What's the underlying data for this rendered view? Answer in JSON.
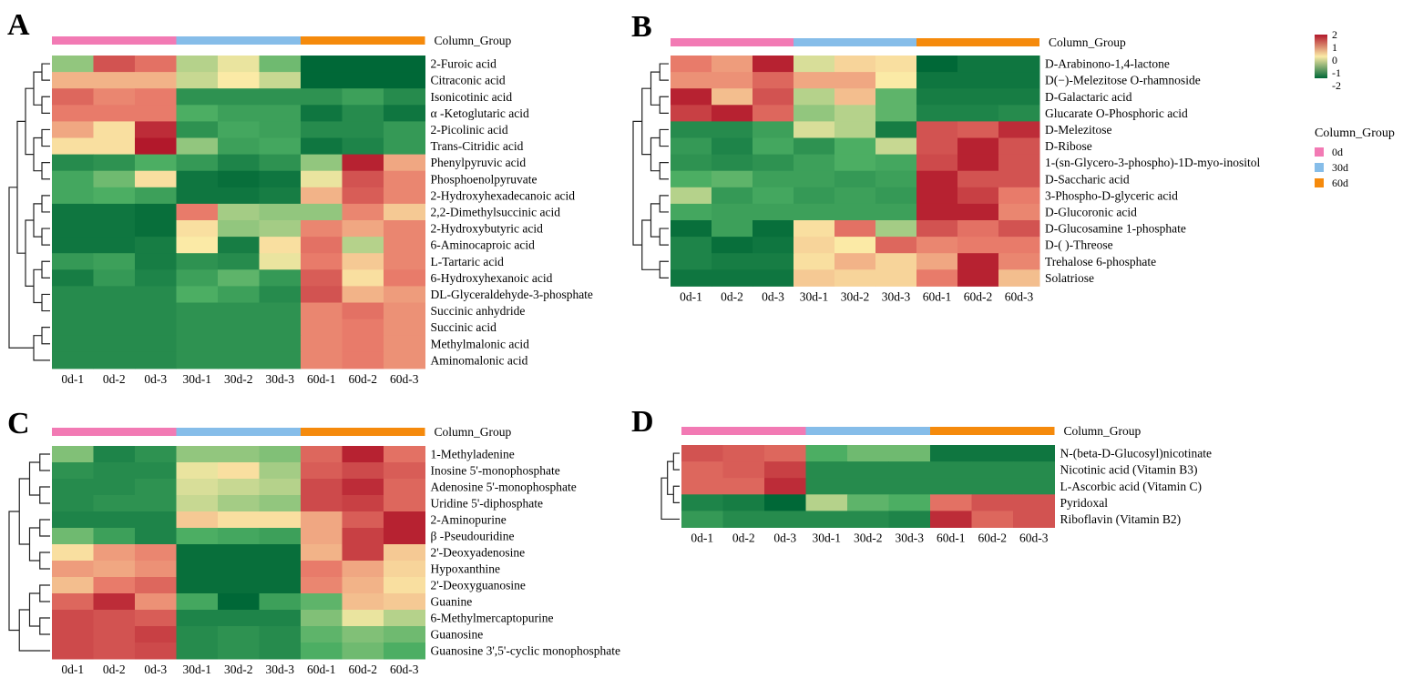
{
  "figure": {
    "legend": {
      "title": "Column_Group",
      "items": [
        {
          "label": "0d",
          "color": "#f27ab4"
        },
        {
          "label": "30d",
          "color": "#86bde9"
        },
        {
          "label": "60d",
          "color": "#f58a0c"
        }
      ]
    },
    "colorbar": {
      "ticks": [
        "2",
        "1",
        "0",
        "-1",
        "-2"
      ],
      "min": -2,
      "max": 2,
      "colors": [
        "#b2182b",
        "#fbeaa6",
        "#006837"
      ]
    }
  },
  "chart_data": [
    {
      "type": "heatmap",
      "panel": "A",
      "title": "Column_Group",
      "xlabel": "",
      "ylabel": "",
      "columns": [
        "0d-1",
        "0d-2",
        "0d-3",
        "30d-1",
        "30d-2",
        "30d-3",
        "60d-1",
        "60d-2",
        "60d-3"
      ],
      "groups": [
        {
          "label": "0d",
          "span": 3
        },
        {
          "label": "30d",
          "span": 3
        },
        {
          "label": "60d",
          "span": 3
        }
      ],
      "rows": [
        "2-Furoic acid",
        "Citraconic acid",
        "Isonicotinic acid",
        "α -Ketoglutaric acid",
        "2-Picolinic acid",
        "Trans-Citridic acid",
        "Phenylpyruvic acid",
        "Phosphoenolpyruvate",
        "2-Hydroxyhexadecanoic acid",
        "2,2-Dimethylsuccinic acid",
        "2-Hydroxybutyric acid",
        "6-Aminocaproic acid",
        "L-Tartaric acid",
        "6-Hydroxyhexanoic acid",
        "DL-Glyceraldehyde-3-phosphate",
        "Succinic anhydride",
        "Succinic acid",
        "Methylmalonic acid",
        "Aminomalonic acid"
      ],
      "values": [
        [
          -0.6,
          1.4,
          1.1,
          -0.4,
          -0.1,
          -0.8,
          -2.0,
          -2.0,
          -2.0
        ],
        [
          0.5,
          0.5,
          0.5,
          -0.3,
          0.0,
          -0.3,
          -2.0,
          -2.0,
          -2.0
        ],
        [
          1.2,
          0.9,
          1.0,
          -1.4,
          -1.4,
          -1.4,
          -1.4,
          -1.2,
          -1.5
        ],
        [
          1.0,
          1.0,
          1.0,
          -1.0,
          -1.2,
          -1.2,
          -1.8,
          -1.5,
          -1.8
        ],
        [
          0.6,
          0.1,
          1.8,
          -1.4,
          -1.1,
          -1.2,
          -1.5,
          -1.5,
          -1.3
        ],
        [
          0.1,
          0.1,
          2.0,
          -0.6,
          -1.2,
          -1.1,
          -1.8,
          -1.6,
          -1.3
        ],
        [
          -1.5,
          -1.4,
          -1.0,
          -1.3,
          -1.6,
          -1.4,
          -0.6,
          1.9,
          0.6
        ],
        [
          -1.1,
          -0.8,
          0.1,
          -1.8,
          -1.9,
          -1.8,
          -0.1,
          1.4,
          0.9
        ],
        [
          -1.1,
          -1.0,
          -1.2,
          -1.8,
          -1.8,
          -1.7,
          0.5,
          1.3,
          0.9
        ],
        [
          -1.8,
          -1.8,
          -1.9,
          1.0,
          -0.5,
          -0.6,
          -0.6,
          0.9,
          0.3
        ],
        [
          -1.8,
          -1.8,
          -1.9,
          0.1,
          -0.6,
          -0.5,
          0.9,
          0.6,
          0.9
        ],
        [
          -1.8,
          -1.8,
          -1.7,
          0.0,
          -1.7,
          0.1,
          1.1,
          -0.4,
          0.9
        ],
        [
          -1.3,
          -1.2,
          -1.7,
          -1.4,
          -1.5,
          -0.1,
          1.0,
          0.3,
          0.9
        ],
        [
          -1.7,
          -1.3,
          -1.6,
          -1.2,
          -0.9,
          -1.3,
          1.3,
          0.1,
          1.0
        ],
        [
          -1.5,
          -1.5,
          -1.5,
          -1.0,
          -1.2,
          -1.5,
          1.4,
          0.5,
          0.7
        ],
        [
          -1.5,
          -1.5,
          -1.5,
          -1.4,
          -1.4,
          -1.4,
          0.9,
          1.1,
          0.8
        ],
        [
          -1.5,
          -1.5,
          -1.5,
          -1.4,
          -1.4,
          -1.4,
          0.9,
          1.0,
          0.8
        ],
        [
          -1.5,
          -1.5,
          -1.5,
          -1.4,
          -1.4,
          -1.4,
          0.9,
          1.0,
          0.8
        ],
        [
          -1.5,
          -1.5,
          -1.5,
          -1.4,
          -1.4,
          -1.4,
          0.9,
          1.0,
          0.8
        ]
      ]
    },
    {
      "type": "heatmap",
      "panel": "B",
      "title": "Column_Group",
      "xlabel": "",
      "ylabel": "",
      "columns": [
        "0d-1",
        "0d-2",
        "0d-3",
        "30d-1",
        "30d-2",
        "30d-3",
        "60d-1",
        "60d-2",
        "60d-3"
      ],
      "groups": [
        {
          "label": "0d",
          "span": 3
        },
        {
          "label": "30d",
          "span": 3
        },
        {
          "label": "60d",
          "span": 3
        }
      ],
      "rows": [
        "D-Arabinono-1,4-lactone",
        "D(−)-Melezitose O-rhamnoside",
        "D-Galactaric acid",
        "Glucarate O-Phosphoric acid",
        "D-Melezitose",
        "D-Ribose",
        "1-(sn-Glycero-3-phospho)-1D-myo-inositol",
        "D-Saccharic acid",
        "3-Phospho-D-glyceric acid",
        "D-Glucoronic acid",
        "D-Glucosamine 1-phosphate",
        "D-( )-Threose",
        "Trehalose 6-phosphate",
        "Solatriose"
      ],
      "values": [
        [
          1.0,
          0.7,
          1.9,
          -0.2,
          0.2,
          0.1,
          -2.0,
          -1.8,
          -1.8
        ],
        [
          0.8,
          0.8,
          1.2,
          0.6,
          0.6,
          0.0,
          -1.8,
          -1.8,
          -1.8
        ],
        [
          1.9,
          0.4,
          1.4,
          -0.4,
          0.4,
          -0.9,
          -1.7,
          -1.7,
          -1.7
        ],
        [
          1.6,
          1.9,
          1.2,
          -0.6,
          -0.4,
          -0.9,
          -1.6,
          -1.6,
          -1.5
        ],
        [
          -1.5,
          -1.5,
          -1.2,
          -0.2,
          -0.4,
          -1.7,
          1.4,
          1.3,
          1.8
        ],
        [
          -1.3,
          -1.6,
          -1.1,
          -1.4,
          -1.0,
          -0.3,
          1.4,
          1.9,
          1.4
        ],
        [
          -1.4,
          -1.5,
          -1.4,
          -1.2,
          -1.0,
          -1.1,
          1.5,
          1.9,
          1.4
        ],
        [
          -1.0,
          -0.9,
          -1.2,
          -1.2,
          -1.3,
          -1.2,
          1.9,
          1.4,
          1.4
        ],
        [
          -0.4,
          -1.3,
          -1.1,
          -1.3,
          -1.2,
          -1.3,
          1.9,
          1.6,
          1.0
        ],
        [
          -1.1,
          -1.2,
          -1.2,
          -1.2,
          -1.2,
          -1.2,
          1.9,
          1.9,
          0.9
        ],
        [
          -1.9,
          -1.2,
          -1.9,
          0.1,
          1.1,
          -0.5,
          1.4,
          1.1,
          1.4
        ],
        [
          -1.6,
          -1.9,
          -1.8,
          0.2,
          0.0,
          1.2,
          0.9,
          1.0,
          1.0
        ],
        [
          -1.6,
          -1.7,
          -1.7,
          0.1,
          0.5,
          0.2,
          0.6,
          1.9,
          0.9
        ],
        [
          -1.8,
          -1.8,
          -1.8,
          0.3,
          0.2,
          0.2,
          1.0,
          1.9,
          0.4
        ]
      ]
    },
    {
      "type": "heatmap",
      "panel": "C",
      "title": "Column_Group",
      "xlabel": "",
      "ylabel": "",
      "columns": [
        "0d-1",
        "0d-2",
        "0d-3",
        "30d-1",
        "30d-2",
        "30d-3",
        "60d-1",
        "60d-2",
        "60d-3"
      ],
      "groups": [
        {
          "label": "0d",
          "span": 3
        },
        {
          "label": "30d",
          "span": 3
        },
        {
          "label": "60d",
          "span": 3
        }
      ],
      "rows": [
        "1-Methyladenine",
        "Inosine 5'-monophosphate",
        "Adenosine 5'-monophosphate",
        "Uridine 5'-diphosphate",
        "2-Aminopurine",
        "β -Pseudouridine",
        "2'-Deoxyadenosine",
        "Hypoxanthine",
        "2'-Deoxyguanosine",
        "Guanine",
        "6-Methylmercaptopurine",
        "Guanosine",
        "Guanosine 3',5'-cyclic monophosphate"
      ],
      "values": [
        [
          -0.7,
          -1.6,
          -1.4,
          -0.6,
          -0.6,
          -0.7,
          1.2,
          1.9,
          1.1
        ],
        [
          -1.4,
          -1.5,
          -1.5,
          -0.1,
          0.1,
          -0.5,
          1.3,
          1.5,
          1.3
        ],
        [
          -1.5,
          -1.5,
          -1.4,
          -0.2,
          -0.3,
          -0.4,
          1.5,
          1.8,
          1.2
        ],
        [
          -1.5,
          -1.4,
          -1.4,
          -0.3,
          -0.5,
          -0.6,
          1.5,
          1.6,
          1.2
        ],
        [
          -1.6,
          -1.6,
          -1.6,
          0.3,
          0.1,
          0.1,
          0.6,
          1.3,
          1.9
        ],
        [
          -0.8,
          -1.2,
          -1.6,
          -1.0,
          -1.1,
          -1.2,
          0.6,
          1.6,
          1.9
        ],
        [
          0.1,
          0.7,
          0.9,
          -1.9,
          -1.9,
          -1.9,
          0.5,
          1.6,
          0.3
        ],
        [
          0.7,
          0.6,
          0.8,
          -1.9,
          -1.9,
          -1.9,
          1.0,
          0.6,
          0.2
        ],
        [
          0.4,
          1.0,
          1.2,
          -1.9,
          -1.9,
          -1.9,
          0.9,
          0.5,
          0.1
        ],
        [
          1.2,
          1.8,
          0.8,
          -1.1,
          -2.0,
          -1.2,
          -0.9,
          0.4,
          0.3
        ],
        [
          1.5,
          1.4,
          1.3,
          -1.6,
          -1.6,
          -1.6,
          -0.7,
          -0.1,
          -0.4
        ],
        [
          1.5,
          1.4,
          1.6,
          -1.5,
          -1.4,
          -1.5,
          -0.9,
          -0.7,
          -0.8
        ],
        [
          1.5,
          1.4,
          1.5,
          -1.5,
          -1.4,
          -1.5,
          -1.0,
          -0.8,
          -1.0
        ]
      ]
    },
    {
      "type": "heatmap",
      "panel": "D",
      "title": "Column_Group",
      "xlabel": "",
      "ylabel": "",
      "columns": [
        "0d-1",
        "0d-2",
        "0d-3",
        "30d-1",
        "30d-2",
        "30d-3",
        "60d-1",
        "60d-2",
        "60d-3"
      ],
      "groups": [
        {
          "label": "0d",
          "span": 3
        },
        {
          "label": "30d",
          "span": 3
        },
        {
          "label": "60d",
          "span": 3
        }
      ],
      "rows": [
        "N-(beta-D-Glucosyl)nicotinate",
        "Nicotinic acid (Vitamin B3)",
        "L-Ascorbic acid (Vitamin C)",
        "Pyridoxal",
        "Riboflavin (Vitamin B2)"
      ],
      "values": [
        [
          1.4,
          1.3,
          1.2,
          -1.0,
          -0.8,
          -0.8,
          -1.8,
          -1.8,
          -1.8
        ],
        [
          1.2,
          1.3,
          1.6,
          -1.5,
          -1.5,
          -1.5,
          -1.5,
          -1.5,
          -1.5
        ],
        [
          1.2,
          1.2,
          1.8,
          -1.5,
          -1.5,
          -1.5,
          -1.5,
          -1.5,
          -1.5
        ],
        [
          -1.6,
          -1.7,
          -2.0,
          -0.4,
          -0.9,
          -1.0,
          1.1,
          1.4,
          1.4
        ],
        [
          -1.3,
          -1.5,
          -1.5,
          -1.5,
          -1.5,
          -1.6,
          1.8,
          1.2,
          1.4
        ]
      ]
    }
  ]
}
